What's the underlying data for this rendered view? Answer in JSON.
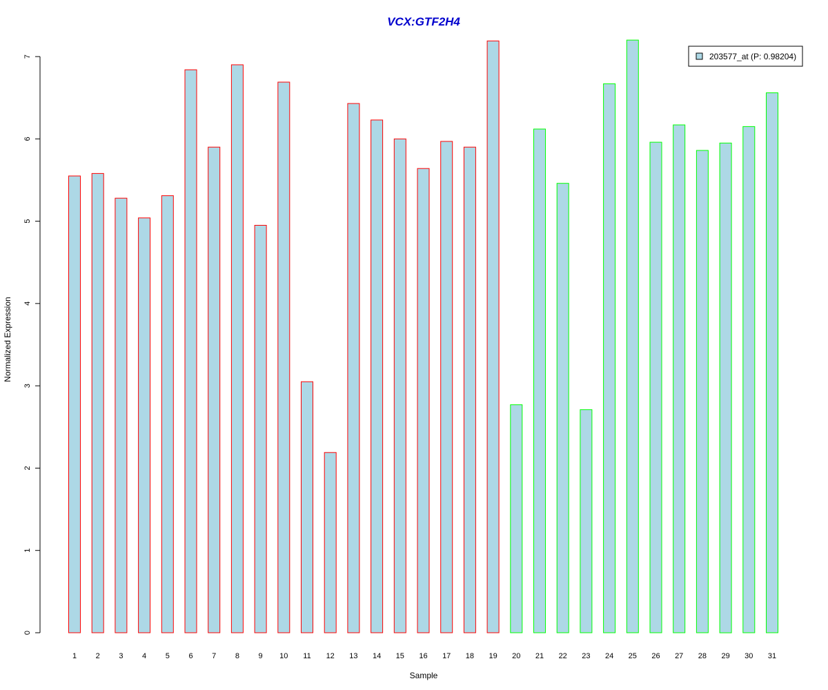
{
  "colors": {
    "bar_fill": "#add8e6",
    "group1_border": "#ff0000",
    "group2_border": "#00ff00",
    "title": "#0000cd",
    "axis": "#000000"
  },
  "chart_data": {
    "type": "bar",
    "title": "VCX:GTF2H4",
    "xlabel": "Sample",
    "ylabel": "Normalized Expression",
    "ylim": [
      0,
      7
    ],
    "yticks": [
      0,
      1,
      2,
      3,
      4,
      5,
      6,
      7
    ],
    "grid": false,
    "legend": {
      "position": "top-right",
      "entries": [
        "203577_at (P: 0.98204)"
      ]
    },
    "categories": [
      "1",
      "2",
      "3",
      "4",
      "5",
      "6",
      "7",
      "8",
      "9",
      "10",
      "11",
      "12",
      "13",
      "14",
      "15",
      "16",
      "17",
      "18",
      "19",
      "20",
      "21",
      "22",
      "23",
      "24",
      "25",
      "26",
      "27",
      "28",
      "29",
      "30",
      "31"
    ],
    "values": [
      5.55,
      5.58,
      5.28,
      5.04,
      5.31,
      6.84,
      5.9,
      6.9,
      4.95,
      6.69,
      3.05,
      2.19,
      6.43,
      6.23,
      6.0,
      5.64,
      5.97,
      5.9,
      7.19,
      2.77,
      6.12,
      5.46,
      2.71,
      6.67,
      7.2,
      5.96,
      6.17,
      5.86,
      5.95,
      6.15,
      6.56
    ],
    "groups": [
      1,
      1,
      1,
      1,
      1,
      1,
      1,
      1,
      1,
      1,
      1,
      1,
      1,
      1,
      1,
      1,
      1,
      1,
      1,
      2,
      2,
      2,
      2,
      2,
      2,
      2,
      2,
      2,
      2,
      2,
      2
    ]
  }
}
